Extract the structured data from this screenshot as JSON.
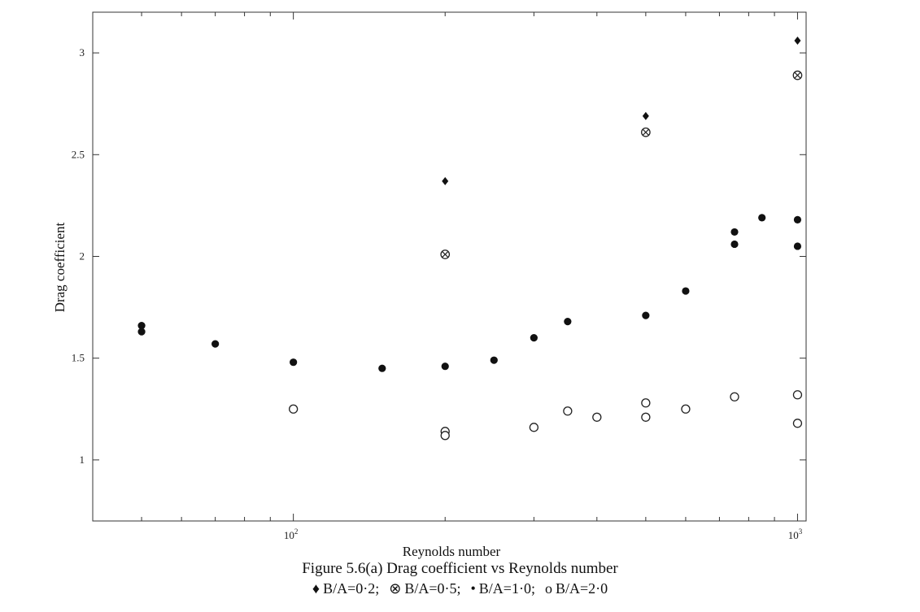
{
  "chart_data": {
    "type": "scatter",
    "title": "Figure 5.6(a) Drag coefficient vs Reynolds number",
    "xlabel": "Reynolds number",
    "ylabel": "Drag coefficient",
    "xscale": "log",
    "xlim": [
      40,
      1040
    ],
    "ylim": [
      0.7,
      3.2
    ],
    "x_ticks": [
      {
        "value": 100,
        "base": "10",
        "exp": "2"
      },
      {
        "value": 1000,
        "base": "10",
        "exp": "3"
      }
    ],
    "y_ticks": [
      {
        "value": 1,
        "label": "1"
      },
      {
        "value": 1.5,
        "label": "1.5"
      },
      {
        "value": 2,
        "label": "2"
      },
      {
        "value": 2.5,
        "label": "2.5"
      },
      {
        "value": 3,
        "label": "3"
      }
    ],
    "grid": false,
    "legend_position": "bottom",
    "series": [
      {
        "name": "B/A=0·2",
        "marker": "diamond",
        "points": [
          [
            200,
            2.37
          ],
          [
            500,
            2.69
          ],
          [
            1000,
            3.06
          ]
        ]
      },
      {
        "name": "B/A=0·5",
        "marker": "otimes",
        "points": [
          [
            200,
            2.01
          ],
          [
            500,
            2.61
          ],
          [
            1000,
            2.89
          ]
        ]
      },
      {
        "name": "B/A=1·0",
        "marker": "filled-circle",
        "points": [
          [
            50,
            1.66
          ],
          [
            50,
            1.63
          ],
          [
            70,
            1.57
          ],
          [
            100,
            1.48
          ],
          [
            150,
            1.45
          ],
          [
            200,
            1.46
          ],
          [
            250,
            1.49
          ],
          [
            300,
            1.6
          ],
          [
            350,
            1.68
          ],
          [
            500,
            1.71
          ],
          [
            600,
            1.83
          ],
          [
            750,
            2.12
          ],
          [
            750,
            2.06
          ],
          [
            850,
            2.19
          ],
          [
            1000,
            2.18
          ],
          [
            1000,
            2.05
          ]
        ]
      },
      {
        "name": "B/A=2·0",
        "marker": "open-circle",
        "points": [
          [
            100,
            1.25
          ],
          [
            200,
            1.14
          ],
          [
            200,
            1.12
          ],
          [
            300,
            1.16
          ],
          [
            350,
            1.24
          ],
          [
            400,
            1.21
          ],
          [
            500,
            1.28
          ],
          [
            500,
            1.21
          ],
          [
            600,
            1.25
          ],
          [
            750,
            1.31
          ],
          [
            1000,
            1.32
          ],
          [
            1000,
            1.18
          ]
        ]
      }
    ]
  },
  "legend": {
    "items": [
      {
        "symbol": "♦",
        "text": "B/A=0·2;"
      },
      {
        "symbol": "⊗",
        "text": "B/A=0·5;"
      },
      {
        "symbol": "•",
        "text": "B/A=1·0;"
      },
      {
        "symbol": "o",
        "text": "B/A=2·0"
      }
    ]
  }
}
